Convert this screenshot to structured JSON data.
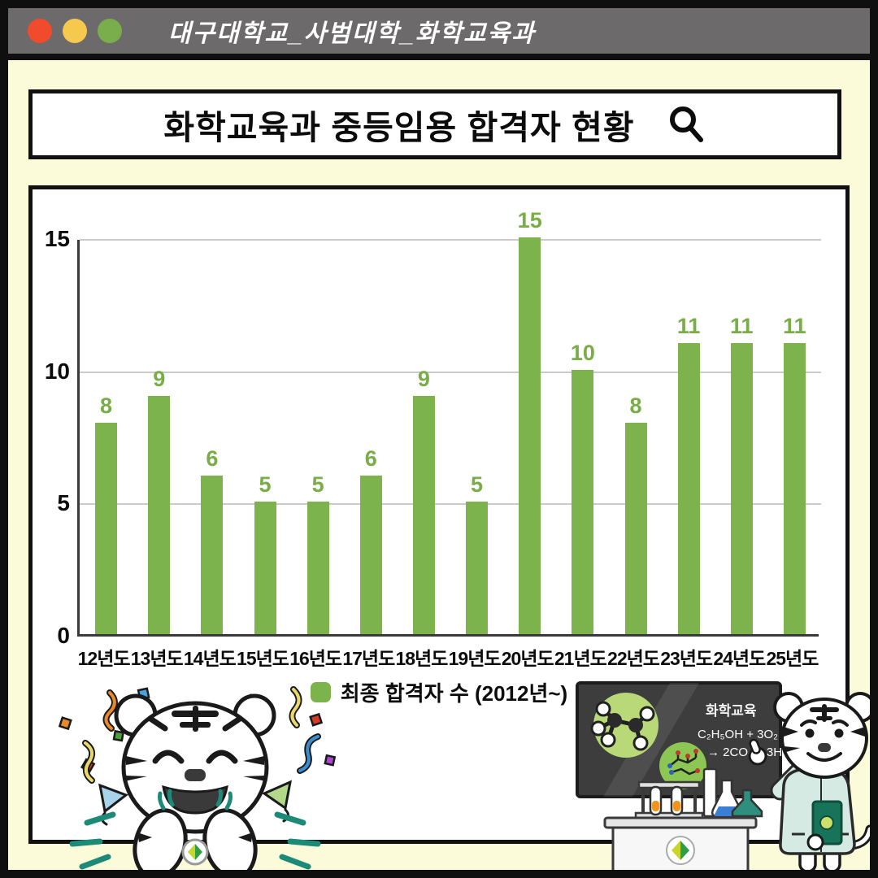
{
  "window": {
    "titlebar": {
      "title": "대구대학교_사범대학_화학교육과",
      "dots": [
        "#ef4b2c",
        "#f6c94e",
        "#7aad4c"
      ]
    },
    "search_bar": {
      "title": "화학교육과 중등임용 합격자 현황"
    }
  },
  "chart_data": {
    "type": "bar",
    "title": "화학교육과 중등임용 합격자 현황",
    "categories": [
      "12년도",
      "13년도",
      "14년도",
      "15년도",
      "16년도",
      "17년도",
      "18년도",
      "19년도",
      "20년도",
      "21년도",
      "22년도",
      "23년도",
      "24년도",
      "25년도"
    ],
    "values": [
      8,
      9,
      6,
      5,
      5,
      6,
      9,
      5,
      15,
      10,
      8,
      11,
      11,
      11
    ],
    "xlabel": "",
    "ylabel": "",
    "ylim": [
      0,
      15
    ],
    "yticks": [
      0,
      5,
      10,
      15
    ],
    "grid": true,
    "legend": {
      "label": "최종 합격자 수 (2012년~)",
      "position": "bottom"
    },
    "bar_color": "#7cb34d",
    "value_label_color": "#79ad48"
  },
  "blackboard": {
    "line1": "화학교육",
    "line2": "C₂H₅OH + 3O₂",
    "line3": "→ 2CO₂ + 3H₂O"
  },
  "colors": {
    "frame_border": "#0f0f0f",
    "titlebar_bg": "#6c6a6a",
    "background": "#fbfbda",
    "panel_bg": "#ffffff",
    "panel_border": "#111111",
    "bar": "#7cb34d",
    "value_label": "#79ad48",
    "gridline": "#cbcbcb",
    "axis": "#3a3a3a",
    "teal_accent": "#1d8a78",
    "mint_coat": "#d6eae4",
    "blackboard": "#3d3d3d"
  }
}
